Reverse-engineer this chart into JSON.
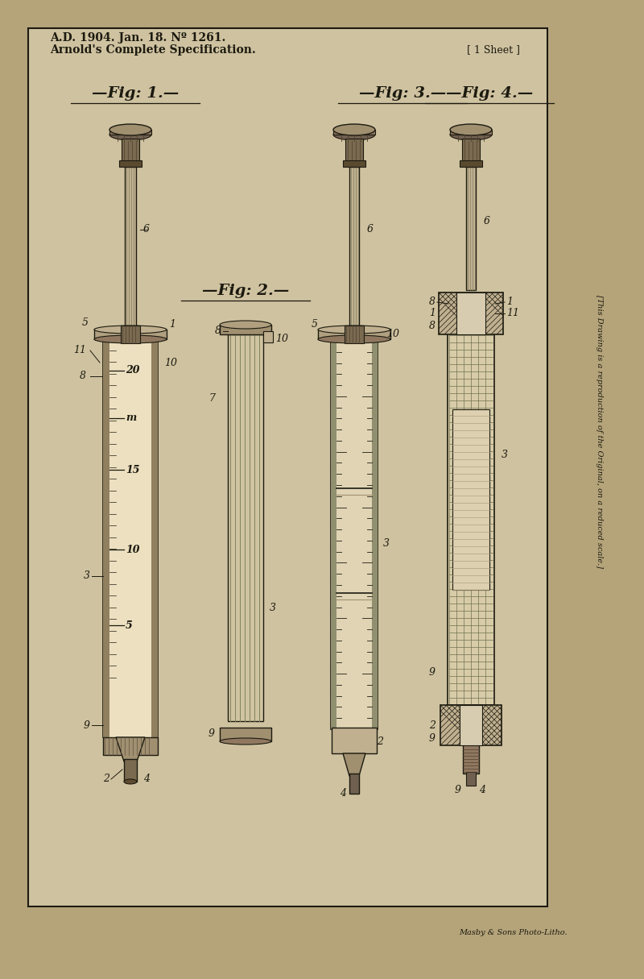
{
  "bg_color": "#c8b99a",
  "outer_bg": "#b5a47a",
  "inner_bg": "#cfc2a0",
  "title_line1": "A.D. 1904. Jan. 18. Nº 1261.",
  "title_line2": "Arnold's Complete Specification.",
  "sheet_label": "[ 1 Sheet ]",
  "side_text": "[This Drawing is a reproduction of the Original, on a reduced scale.]",
  "bottom_text": "Masby & Sons Photo-Litho.",
  "fig1_label": "—Fig: 1.—",
  "fig2_label": "—Fig: 2.—",
  "fig3_label": "—Fig: 3.—",
  "fig4_label": "—Fig: 4.—",
  "ink": "#1c1a10",
  "fig_width": 8.0,
  "fig_height": 12.15
}
